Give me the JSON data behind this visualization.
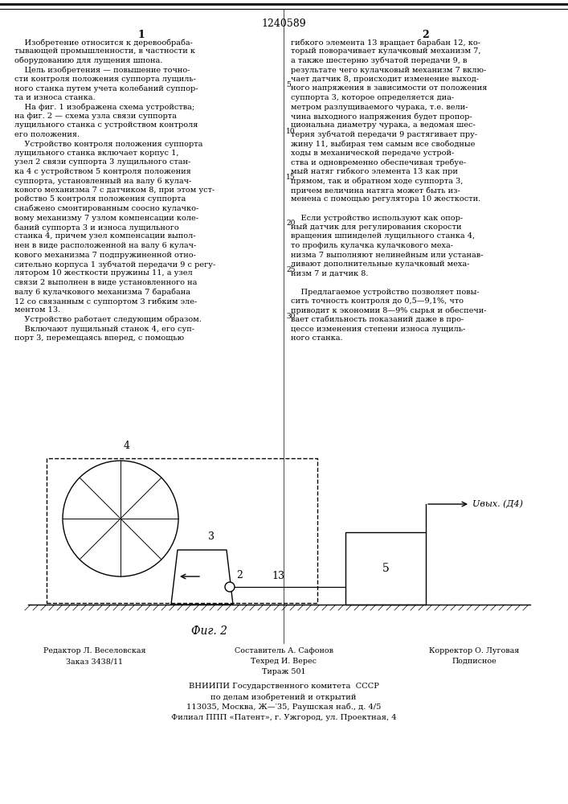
{
  "patent_number": "1240589",
  "col1_number": "1",
  "col2_number": "2",
  "col1_text": [
    "    Изобретение относится к деревообраба-",
    "тывающей промышленности, в частности к",
    "оборудованию для лущения шпона.",
    "    Цель изобретения — повышение точно-",
    "сти контроля положения суппорта лущиль-",
    "ного станка путем учета колебаний суппор-",
    "та и износа станка.",
    "    На фиг. 1 изображена схема устройства;",
    "на фиг. 2 — схема узла связи суппорта",
    "лущильного станка с устройством контроля",
    "его положения.",
    "    Устройство контроля положения суппорта",
    "лущильного станка включает корпус 1,",
    "узел 2 связи суппорта 3 лущильного стан-",
    "ка 4 с устройством 5 контроля положения",
    "суппорта, установленный на валу 6 кулач-",
    "кового механизма 7 с датчиком 8, при этом уст-",
    "ройство 5 контроля положения суппорта",
    "снабжено смонтированным соосно кулачко-",
    "вому механизму 7 узлом компенсации коле-",
    "баний суппорта 3 и износа лущильного",
    "станка 4, причем узел компенсации выпол-",
    "нен в виде расположенной на валу 6 кулач-",
    "кового механизма 7 подпружиненной отно-",
    "сительно корпуса 1 зубчатой передачи 9 с регу-",
    "лятором 10 жесткости пружины 11, а узел",
    "связи 2 выполнен в виде установленного на",
    "валу 6 кулачкового механизма 7 барабана",
    "12 со связанным с суппортом 3 гибким эле-",
    "ментом 13.",
    "    Устройство работает следующим образом.",
    "    Включают лущильный станок 4, его суп-",
    "порт 3, перемещаясь вперед, с помощью"
  ],
  "col2_text": [
    "гибкого элемента 13 вращает барабан 12, ко-",
    "торый поворачивает кулачковый механизм 7,",
    "а также шестерню зубчатой передачи 9, в",
    "результате чего кулачковый механизм 7 вклю-",
    "чает датчик 8, происходит изменение выход-",
    "ного напряжения в зависимости от положения",
    "суппорта 3, которое определяется диа-",
    "метром разлущиваемого чурака, т.е. вели-",
    "чина выходного напряжения будет пропор-",
    "циональна диаметру чурака, а ведомая шес-",
    "терня зубчатой передачи 9 растягивает пру-",
    "жину 11, выбирая тем самым все свободные",
    "ходы в механической передаче устрой-",
    "ства и одновременно обеспечивая требуе-",
    "мый натяг гибкого элемента 13 как при",
    "прямом, так и обратном ходе суппорта 3,",
    "причем величина натяга может быть из-",
    "менена с помощью регулятора 10 жесткости.",
    "",
    "    Если устройство используют как опор-",
    "ный датчик для регулирования скорости",
    "вращения шпинделей лущильного станка 4,",
    "то профиль кулачка кулачкового меха-",
    "низма 7 выполняют нелинейным или устанав-",
    "ливают дополнительные кулачковый меха-",
    "низм 7 и датчик 8.",
    "",
    "    Предлагаемое устройство позволяет повы-",
    "сить точность контроля до 0,5—9,1%, что",
    "приводит к экономии 8—9% сырья и обеспечи-",
    "вает стабильность показаний даже в про-",
    "цессе изменения степени износа лущиль-",
    "ного станка."
  ],
  "fig_caption": "Фиг. 2",
  "u_label": "Uвых. (Д4)",
  "footer": {
    "row1": [
      "Редактор Л. Веселовская",
      "Составитель А. Сафонов",
      "Корректор О. Луговая"
    ],
    "row2": [
      "Заказ 3438/11",
      "Техред И. Верес",
      "Подписное"
    ],
    "row3": [
      "",
      "Тираж 501",
      ""
    ],
    "vniiipi": "ВНИИПИ Государственного комитета  СССР",
    "line2": "по делам изобретений и открытий",
    "line3": "113035, Москва, Ж—′35, Раушская наб., д. 4/5",
    "line4": "Филиал ППП «Патент», г. Ужгород, ул. Проектная, 4"
  }
}
